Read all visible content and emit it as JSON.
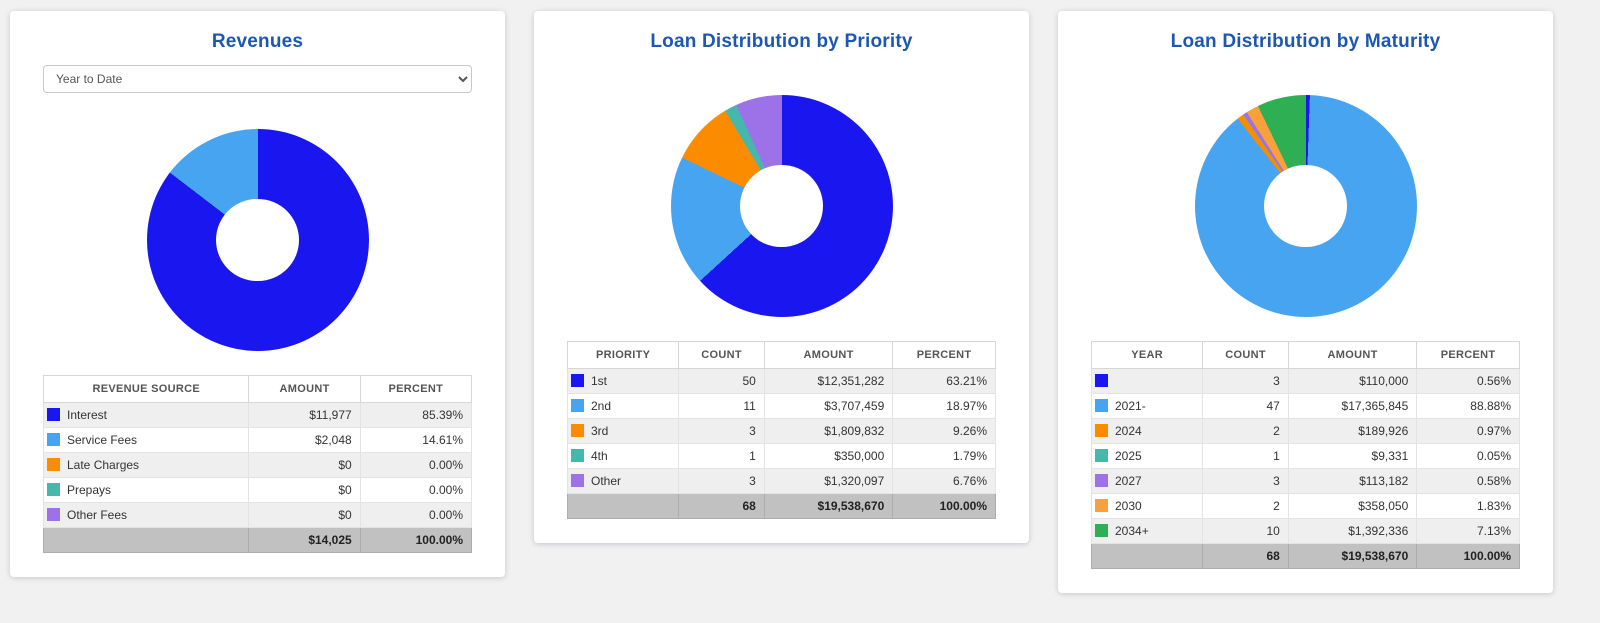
{
  "page": {
    "background": "#f1f1f2",
    "title_color": "#1d58b0"
  },
  "cards": [
    {
      "title": "Revenues",
      "select": "Year to Date",
      "columns": [
        {
          "label": "REVENUE SOURCE",
          "align": "left",
          "width": "48%"
        },
        {
          "label": "AMOUNT",
          "align": "right",
          "width": "26%"
        },
        {
          "label": "PERCENT",
          "align": "right",
          "width": "26%"
        }
      ],
      "rows": [
        {
          "color": "#1a16f0",
          "cells": [
            "Interest",
            "$11,977",
            "85.39%"
          ]
        },
        {
          "color": "#47a4f0",
          "cells": [
            "Service Fees",
            "$2,048",
            "14.61%"
          ]
        },
        {
          "color": "#fb8c00",
          "cells": [
            "Late Charges",
            "$0",
            "0.00%"
          ]
        },
        {
          "color": "#45b7ad",
          "cells": [
            "Prepays",
            "$0",
            "0.00%"
          ]
        },
        {
          "color": "#9d72e8",
          "cells": [
            "Other Fees",
            "$0",
            "0.00%"
          ]
        }
      ],
      "total_cells": [
        "",
        "$14,025",
        "100.00%"
      ],
      "chart_data": {
        "type": "pie",
        "title": "Revenues",
        "labels": [
          "Interest",
          "Service Fees",
          "Late Charges",
          "Prepays",
          "Other Fees"
        ],
        "values": [
          11977,
          2048,
          0,
          0,
          0
        ],
        "percents": [
          85.39,
          14.61,
          0,
          0,
          0
        ],
        "colors": [
          "#1a16f0",
          "#47a4f0",
          "#fb8c00",
          "#45b7ad",
          "#9d72e8"
        ],
        "donut_hole": 0.37,
        "start_angle_deg": 0,
        "legend_position": "table-below"
      }
    },
    {
      "title": "Loan Distribution by Priority",
      "select": null,
      "columns": [
        {
          "label": "PRIORITY",
          "align": "left",
          "width": "26%"
        },
        {
          "label": "COUNT",
          "align": "right",
          "width": "20%"
        },
        {
          "label": "AMOUNT",
          "align": "right",
          "width": "30%"
        },
        {
          "label": "PERCENT",
          "align": "right",
          "width": "24%"
        }
      ],
      "rows": [
        {
          "color": "#1a16f0",
          "cells": [
            "1st",
            "50",
            "$12,351,282",
            "63.21%"
          ]
        },
        {
          "color": "#47a4f0",
          "cells": [
            "2nd",
            "11",
            "$3,707,459",
            "18.97%"
          ]
        },
        {
          "color": "#fb8c00",
          "cells": [
            "3rd",
            "3",
            "$1,809,832",
            "9.26%"
          ]
        },
        {
          "color": "#45b7ad",
          "cells": [
            "4th",
            "1",
            "$350,000",
            "1.79%"
          ]
        },
        {
          "color": "#9d72e8",
          "cells": [
            "Other",
            "3",
            "$1,320,097",
            "6.76%"
          ]
        }
      ],
      "total_cells": [
        "",
        "68",
        "$19,538,670",
        "100.00%"
      ],
      "chart_data": {
        "type": "pie",
        "title": "Loan Distribution by Priority",
        "labels": [
          "1st",
          "2nd",
          "3rd",
          "4th",
          "Other"
        ],
        "counts": [
          50,
          11,
          3,
          1,
          3
        ],
        "values": [
          12351282,
          3707459,
          1809832,
          350000,
          1320097
        ],
        "percents": [
          63.21,
          18.97,
          9.26,
          1.79,
          6.76
        ],
        "colors": [
          "#1a16f0",
          "#47a4f0",
          "#fb8c00",
          "#45b7ad",
          "#9d72e8"
        ],
        "donut_hole": 0.37,
        "start_angle_deg": 0,
        "legend_position": "table-below"
      }
    },
    {
      "title": "Loan Distribution by Maturity",
      "select": null,
      "columns": [
        {
          "label": "YEAR",
          "align": "left",
          "width": "26%"
        },
        {
          "label": "COUNT",
          "align": "right",
          "width": "20%"
        },
        {
          "label": "AMOUNT",
          "align": "right",
          "width": "30%"
        },
        {
          "label": "PERCENT",
          "align": "right",
          "width": "24%"
        }
      ],
      "rows": [
        {
          "color": "#1a16f0",
          "cells": [
            "",
            "3",
            "$110,000",
            "0.56%"
          ]
        },
        {
          "color": "#47a4f0",
          "cells": [
            "2021-",
            "47",
            "$17,365,845",
            "88.88%"
          ]
        },
        {
          "color": "#fb8c00",
          "cells": [
            "2024",
            "2",
            "$189,926",
            "0.97%"
          ]
        },
        {
          "color": "#45b7ad",
          "cells": [
            "2025",
            "1",
            "$9,331",
            "0.05%"
          ]
        },
        {
          "color": "#9d72e8",
          "cells": [
            "2027",
            "3",
            "$113,182",
            "0.58%"
          ]
        },
        {
          "color": "#f8a13b",
          "cells": [
            "2030",
            "2",
            "$358,050",
            "1.83%"
          ]
        },
        {
          "color": "#2eaf53",
          "cells": [
            "2034+",
            "10",
            "$1,392,336",
            "7.13%"
          ]
        }
      ],
      "total_cells": [
        "",
        "68",
        "$19,538,670",
        "100.00%"
      ],
      "chart_data": {
        "type": "pie",
        "title": "Loan Distribution by Maturity",
        "labels": [
          "",
          "2021-",
          "2024",
          "2025",
          "2027",
          "2030",
          "2034+"
        ],
        "counts": [
          3,
          47,
          2,
          1,
          3,
          2,
          10
        ],
        "values": [
          110000,
          17365845,
          189926,
          9331,
          113182,
          358050,
          1392336
        ],
        "percents": [
          0.56,
          88.88,
          0.97,
          0.05,
          0.58,
          1.83,
          7.13
        ],
        "colors": [
          "#1a16f0",
          "#47a4f0",
          "#fb8c00",
          "#45b7ad",
          "#9d72e8",
          "#f8a13b",
          "#2eaf53"
        ],
        "donut_hole": 0.37,
        "start_angle_deg": 0,
        "legend_position": "table-below"
      }
    }
  ]
}
